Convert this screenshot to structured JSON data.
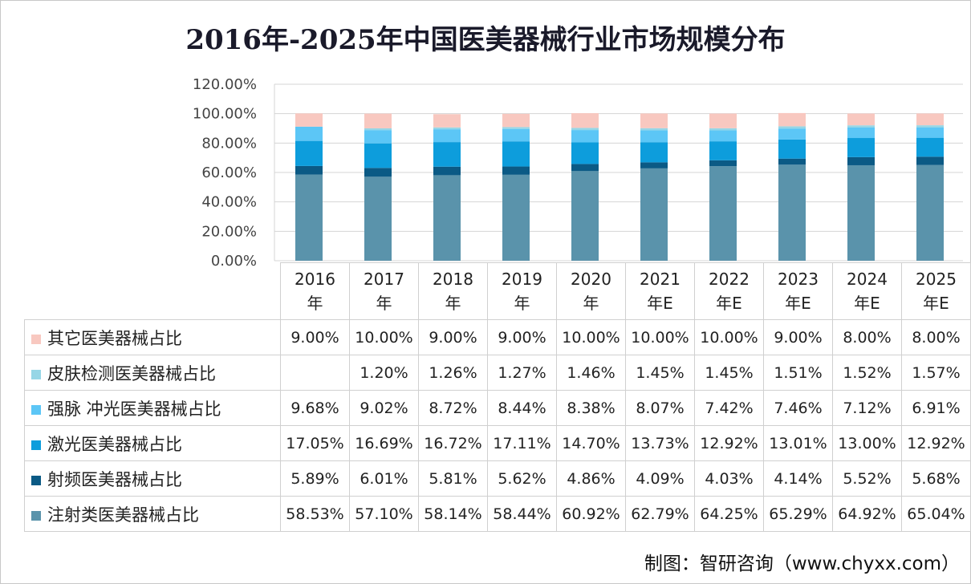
{
  "chart_data": {
    "type": "bar",
    "stacked": true,
    "title": "2016年-2025年中国医美器械行业市场规模分布",
    "categories": [
      "2016年",
      "2017年",
      "2018年",
      "2019年",
      "2020年",
      "2021年E",
      "2022年E",
      "2023年E",
      "2024年E",
      "2025年E"
    ],
    "category_lines": [
      [
        "2016",
        "年"
      ],
      [
        "2017",
        "年"
      ],
      [
        "2018",
        "年"
      ],
      [
        "2019",
        "年"
      ],
      [
        "2020",
        "年"
      ],
      [
        "2021",
        "年E"
      ],
      [
        "2022",
        "年E"
      ],
      [
        "2023",
        "年E"
      ],
      [
        "2024",
        "年E"
      ],
      [
        "2025",
        "年E"
      ]
    ],
    "ylim": [
      0,
      120
    ],
    "yticks": [
      "0.00%",
      "20.00%",
      "40.00%",
      "60.00%",
      "80.00%",
      "100.00%",
      "120.00%"
    ],
    "grid": true,
    "legend": "table-left",
    "series": [
      {
        "name": "注射类医美器械占比",
        "color": "#5a93ab",
        "values": [
          58.53,
          57.1,
          58.14,
          58.44,
          60.92,
          62.79,
          64.25,
          65.29,
          64.92,
          65.04
        ],
        "labels": [
          "58.53%",
          "57.10%",
          "58.14%",
          "58.44%",
          "60.92%",
          "62.79%",
          "64.25%",
          "65.29%",
          "64.92%",
          "65.04%"
        ]
      },
      {
        "name": "射频医美器械占比",
        "color": "#0b5a85",
        "values": [
          5.89,
          6.01,
          5.81,
          5.62,
          4.86,
          4.09,
          4.03,
          4.14,
          5.52,
          5.68
        ],
        "labels": [
          "5.89%",
          "6.01%",
          "5.81%",
          "5.62%",
          "4.86%",
          "4.09%",
          "4.03%",
          "4.14%",
          "5.52%",
          "5.68%"
        ]
      },
      {
        "name": "激光医美器械占比",
        "color": "#0d9ddc",
        "values": [
          17.05,
          16.69,
          16.72,
          17.11,
          14.7,
          13.73,
          12.92,
          13.01,
          13.0,
          12.92
        ],
        "labels": [
          "17.05%",
          "16.69%",
          "16.72%",
          "17.11%",
          "14.70%",
          "13.73%",
          "12.92%",
          "13.01%",
          "13.00%",
          "12.92%"
        ]
      },
      {
        "name": "强脉 冲光医美器械占比",
        "color": "#5cc6f6",
        "values": [
          9.68,
          9.02,
          8.72,
          8.44,
          8.38,
          8.07,
          7.42,
          7.46,
          7.12,
          6.91
        ],
        "labels": [
          "9.68%",
          "9.02%",
          "8.72%",
          "8.44%",
          "8.38%",
          "8.07%",
          "7.42%",
          "7.46%",
          "7.12%",
          "6.91%"
        ]
      },
      {
        "name": "皮肤检测医美器械占比",
        "color": "#96d6e6",
        "values": [
          null,
          1.2,
          1.26,
          1.27,
          1.46,
          1.45,
          1.45,
          1.51,
          1.52,
          1.57
        ],
        "labels": [
          "",
          "1.20%",
          "1.26%",
          "1.27%",
          "1.46%",
          "1.45%",
          "1.45%",
          "1.51%",
          "1.52%",
          "1.57%"
        ]
      },
      {
        "name": "其它医美器械占比",
        "color": "#f8c8c0",
        "values": [
          9.0,
          10.0,
          9.0,
          9.0,
          10.0,
          10.0,
          10.0,
          9.0,
          8.0,
          8.0
        ],
        "labels": [
          "9.00%",
          "10.00%",
          "9.00%",
          "9.00%",
          "10.00%",
          "10.00%",
          "10.00%",
          "9.00%",
          "8.00%",
          "8.00%"
        ]
      }
    ]
  },
  "source": "制图：智研咨询（www.chyxx.com）",
  "watermark": "智研咨询 www.chyxx.com"
}
